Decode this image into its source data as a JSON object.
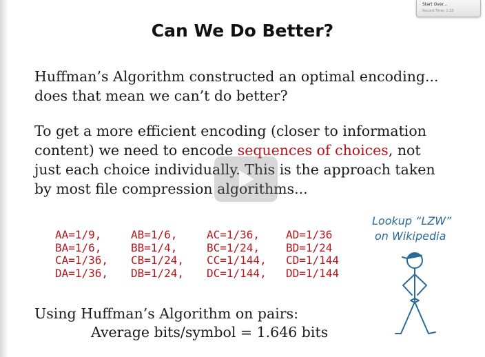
{
  "recorder": {
    "button_label": "Start Over...",
    "record_time": "Record Time: 1:33"
  },
  "slide": {
    "title": "Can We Do Better?",
    "paragraph1": "Huffman’s Algorithm constructed an optimal encoding... does that mean we can’t do better?",
    "paragraph2": {
      "part1": "To get a more efficient encoding (closer to information content) we need to encode ",
      "highlight": "sequences of choices",
      "part2": ", not just each choice individually.  This is the approach taken by most file compression algorithms..."
    },
    "probabilities": [
      [
        "AA=1/9,",
        "AB=1/6,",
        "AC=1/36,",
        "AD=1/36"
      ],
      [
        "BA=1/6,",
        "BB=1/4,",
        "BC=1/24,",
        "BD=1/24"
      ],
      [
        "CA=1/36,",
        "CB=1/24,",
        "CC=1/144,",
        "CD=1/144"
      ],
      [
        "DA=1/36,",
        "DB=1/24,",
        "DC=1/144,",
        "DD=1/144"
      ]
    ],
    "note": {
      "line1": "Lookup “LZW”",
      "line2": "on Wikipedia"
    },
    "conclusion_line1": "Using Huffman’s Algorithm on pairs:",
    "conclusion_line2": "Average bits/symbol = 1.646 bits"
  },
  "colors": {
    "highlight": "#b5171c",
    "note": "#2a6a9a",
    "text": "#1a1a1a"
  },
  "icons": {
    "play": "play-icon",
    "figure": "stick-figure-icon"
  }
}
